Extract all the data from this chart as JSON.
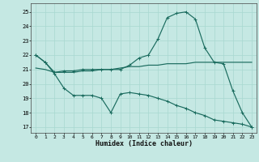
{
  "xlabel": "Humidex (Indice chaleur)",
  "bg_color": "#c5e8e3",
  "line_color": "#1a6b5e",
  "grid_color": "#a8d8d0",
  "xlim": [
    -0.5,
    23.5
  ],
  "ylim": [
    16.6,
    25.6
  ],
  "x_ticks": [
    0,
    1,
    2,
    3,
    4,
    5,
    6,
    7,
    8,
    9,
    10,
    11,
    12,
    13,
    14,
    15,
    16,
    17,
    18,
    19,
    20,
    21,
    22,
    23
  ],
  "y_ticks": [
    17,
    18,
    19,
    20,
    21,
    22,
    23,
    24,
    25
  ],
  "line_peak_x": [
    0,
    1,
    2,
    3,
    4,
    5,
    6,
    7,
    8,
    9,
    10,
    11,
    12,
    13,
    14,
    15,
    16,
    17,
    18,
    19,
    20,
    21,
    22,
    23
  ],
  "line_peak_y": [
    22.0,
    21.5,
    20.8,
    20.9,
    20.9,
    21.0,
    21.0,
    21.0,
    21.0,
    21.0,
    21.3,
    21.8,
    22.0,
    23.1,
    24.6,
    24.9,
    25.0,
    24.5,
    22.5,
    21.5,
    21.4,
    19.5,
    18.0,
    17.0
  ],
  "line_mid_x": [
    0,
    1,
    2,
    3,
    4,
    5,
    6,
    7,
    8,
    9,
    10,
    11,
    12,
    13,
    14,
    15,
    16,
    17,
    18,
    19,
    20,
    21,
    22,
    23
  ],
  "line_mid_y": [
    21.1,
    21.0,
    20.8,
    20.8,
    20.8,
    20.9,
    20.9,
    21.0,
    21.0,
    21.1,
    21.2,
    21.2,
    21.3,
    21.3,
    21.4,
    21.4,
    21.4,
    21.5,
    21.5,
    21.5,
    21.5,
    21.5,
    21.5,
    21.5
  ],
  "line_bot_x": [
    0,
    1,
    2,
    3,
    4,
    5,
    6,
    7,
    8,
    9,
    10,
    11,
    12,
    13,
    14,
    15,
    16,
    17,
    18,
    19,
    20,
    21,
    22,
    23
  ],
  "line_bot_y": [
    22.0,
    21.5,
    20.7,
    19.7,
    19.2,
    19.2,
    19.2,
    19.0,
    18.0,
    19.3,
    19.4,
    19.3,
    19.2,
    19.0,
    18.8,
    18.5,
    18.3,
    18.0,
    17.8,
    17.5,
    17.4,
    17.3,
    17.2,
    17.0
  ]
}
